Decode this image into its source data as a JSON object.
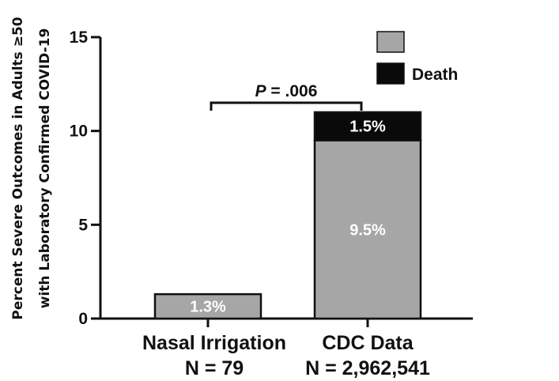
{
  "chart_data": {
    "type": "bar",
    "stacked": true,
    "ylabel_line1": "Percent Severe Outcomes in Adults ≥50",
    "ylabel_line2": "with Laboratory Confirmed COVID-19",
    "ylim": [
      0,
      15
    ],
    "yticks": [
      0,
      5,
      10,
      15
    ],
    "categories": [
      {
        "name": "Nasal Irrigation",
        "n": "N = 79"
      },
      {
        "name": "CDC Data",
        "n": "N = 2,962,541"
      }
    ],
    "series": [
      {
        "values": [
          1.3,
          9.5
        ],
        "labels": [
          "1.3%",
          "9.5%"
        ],
        "color": "#a6a6a6"
      },
      {
        "name": "Death",
        "values": [
          0,
          1.5
        ],
        "labels": [
          "",
          "1.5%"
        ],
        "color": "#0a0a0a"
      }
    ],
    "annotation": {
      "text": ".006",
      "prefix": "P",
      "eq": " = "
    },
    "legend_placement": "top-right"
  }
}
